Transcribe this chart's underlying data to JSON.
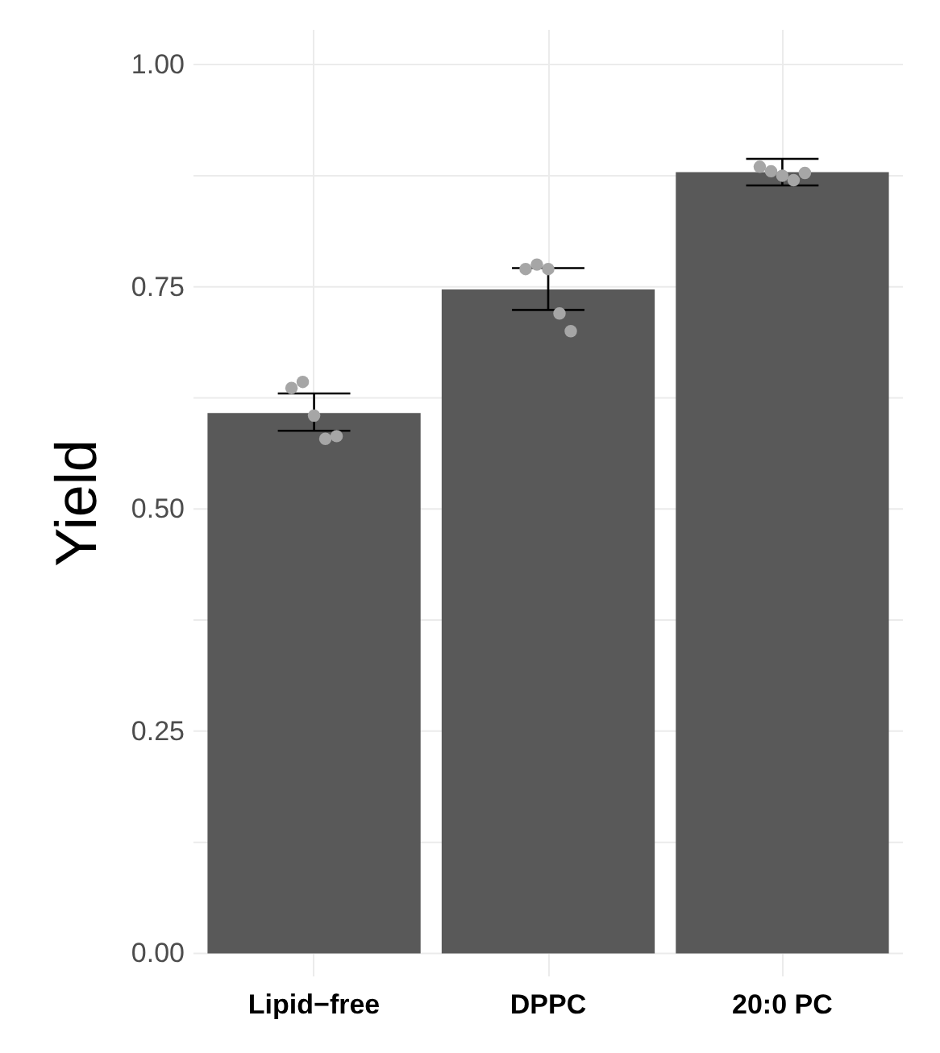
{
  "chart_data": {
    "type": "bar",
    "ylabel": "Yield",
    "categories": [
      "Lipid−free",
      "DPPC",
      "20:0 PC"
    ],
    "series": [
      {
        "color": "#595959",
        "values": [
          0.608,
          0.747,
          0.879
        ],
        "errors": [
          [
            0.588,
            0.63
          ],
          [
            0.724,
            0.771
          ],
          [
            0.864,
            0.894
          ]
        ]
      },
      {
        "type": "scatter",
        "color": "#a6a6a6",
        "x": [
          "Lipid−free",
          "Lipid−free",
          "Lipid−free",
          "Lipid−free",
          "Lipid−free",
          "DPPC",
          "DPPC",
          "DPPC",
          "DPPC",
          "DPPC",
          "20:0 PC",
          "20:0 PC",
          "20:0 PC",
          "20:0 PC",
          "20:0 PC"
        ],
        "values": [
          0.636,
          0.643,
          0.605,
          0.579,
          0.582,
          0.77,
          0.775,
          0.77,
          0.72,
          0.7,
          0.885,
          0.88,
          0.875,
          0.87,
          0.878
        ]
      }
    ],
    "ylim": [
      -0.025,
      1.04
    ],
    "yticks": [
      {
        "value": 0,
        "label": "0.00"
      },
      {
        "value": 0.125,
        "label": null
      },
      {
        "value": 0.25,
        "label": "0.25"
      },
      {
        "value": 0.375,
        "label": null
      },
      {
        "value": 0.5,
        "label": "0.50"
      },
      {
        "value": 0.625,
        "label": null
      },
      {
        "value": 0.75,
        "label": "0.75"
      },
      {
        "value": 0.875,
        "label": null
      },
      {
        "value": 1,
        "label": "1.00"
      }
    ],
    "grid": true,
    "marker": "circle"
  }
}
